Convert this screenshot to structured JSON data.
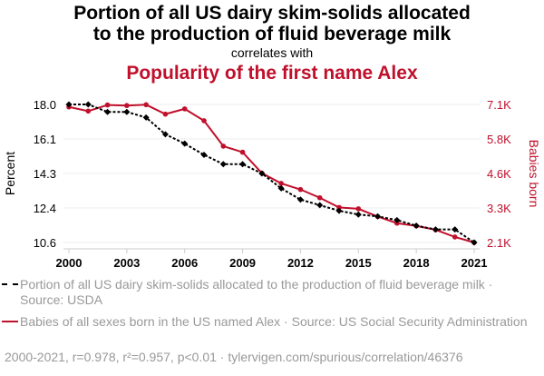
{
  "title_line1": "Portion of all US dairy skim-solids allocated",
  "title_line2": "to the production of fluid beverage milk",
  "correlates": "correlates with",
  "title2": "Popularity of the first name Alex",
  "colors": {
    "series1": "#000000",
    "series2": "#c0102c",
    "grid": "#eeeeee"
  },
  "chart_data": {
    "type": "line",
    "x": [
      2000,
      2001,
      2002,
      2003,
      2004,
      2005,
      2006,
      2007,
      2008,
      2009,
      2010,
      2011,
      2012,
      2013,
      2014,
      2015,
      2016,
      2017,
      2018,
      2019,
      2020,
      2021
    ],
    "x_ticks": [
      "2000",
      "2003",
      "2006",
      "2009",
      "2012",
      "2015",
      "2018",
      "2021"
    ],
    "ylabel_left": "Percent",
    "ylabel_right": "Babies born",
    "ylim_left": [
      10.6,
      18.0
    ],
    "ylim_right": [
      2100,
      7100
    ],
    "yticks_left": [
      "18.0",
      "16.1",
      "14.3",
      "12.4",
      "10.6"
    ],
    "yticks_right": [
      "7.1K",
      "5.8K",
      "4.6K",
      "3.3K",
      "2.1K"
    ],
    "grid": true,
    "series": [
      {
        "name": "Portion of all US dairy skim-solids allocated to the production of fluid beverage milk · Source: USDA",
        "axis": "left",
        "style": "dashed",
        "values": [
          18.0,
          18.0,
          17.6,
          17.6,
          17.3,
          16.4,
          15.9,
          15.3,
          14.8,
          14.8,
          14.3,
          13.5,
          12.9,
          12.6,
          12.3,
          12.1,
          12.0,
          11.8,
          11.5,
          11.3,
          11.3,
          10.6
        ]
      },
      {
        "name": "Babies of all sexes born in the US named Alex · Source: US Social Security Administration",
        "axis": "right",
        "style": "solid",
        "values": [
          7010,
          6860,
          7080,
          7060,
          7090,
          6750,
          6940,
          6510,
          5590,
          5370,
          4610,
          4240,
          4020,
          3720,
          3370,
          3320,
          3040,
          2800,
          2700,
          2560,
          2300,
          2100
        ]
      }
    ]
  },
  "footer": "2000-2021, r=0.978, r²=0.957, p<0.01 · tylervigen.com/spurious/correlation/46376"
}
